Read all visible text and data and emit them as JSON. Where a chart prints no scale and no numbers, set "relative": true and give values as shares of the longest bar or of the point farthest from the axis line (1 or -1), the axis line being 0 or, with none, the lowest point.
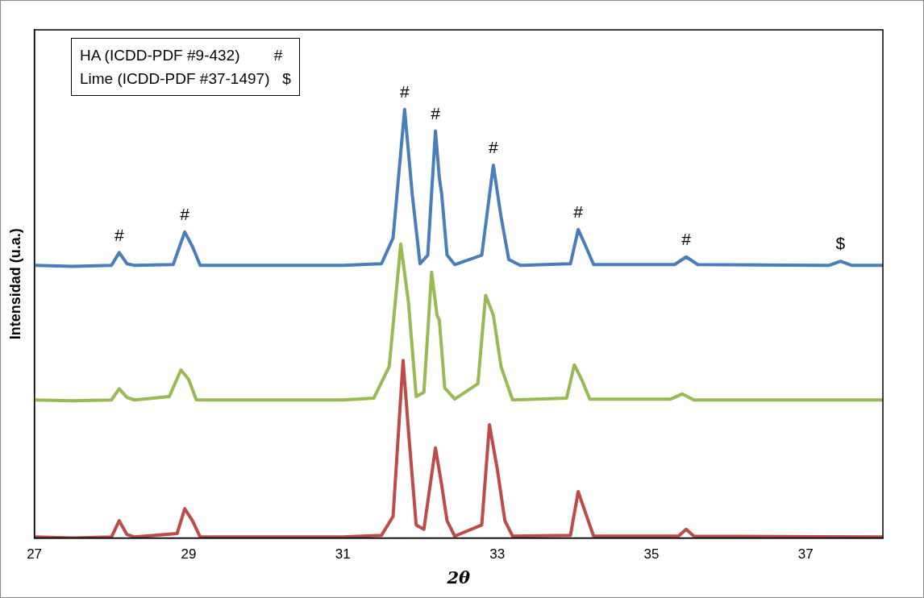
{
  "chart_data": {
    "type": "line",
    "relative": true,
    "xlabel": "2θ",
    "ylabel": "Intensidad (u.a.)",
    "xlim": [
      27,
      38
    ],
    "xticks": [
      27,
      29,
      31,
      33,
      35,
      37
    ],
    "grid": false,
    "legend": false,
    "marker": "none",
    "line_style": "solid",
    "annotations": [
      "HA (ICDD-PDF #9-432)        #",
      "Lime (ICDD-PDF #37-1497)   $",
      {
        "text": "#",
        "x": 28.1,
        "y": 0.666
      },
      {
        "text": "#",
        "x": 28.95,
        "y": 0.714
      },
      {
        "text": "#",
        "x": 31.8,
        "y": 1.0
      },
      {
        "text": "#",
        "x": 32.2,
        "y": 0.95
      },
      {
        "text": "#",
        "x": 32.95,
        "y": 0.87
      },
      {
        "text": "#",
        "x": 34.05,
        "y": 0.72
      },
      {
        "text": "#",
        "x": 35.45,
        "y": 0.656
      },
      {
        "text": "$",
        "x": 37.45,
        "y": 0.646
      }
    ],
    "series": [
      {
        "color": "#4a7ebb",
        "x": [
          27,
          27.5,
          28.0,
          28.1,
          28.2,
          28.3,
          28.8,
          28.95,
          29.05,
          29.15,
          30,
          31,
          31.5,
          31.65,
          31.8,
          31.9,
          32.0,
          32.1,
          32.2,
          32.25,
          32.28,
          32.35,
          32.45,
          32.8,
          32.95,
          33.05,
          33.15,
          33.3,
          33.95,
          34.05,
          34.15,
          34.25,
          35.3,
          35.45,
          35.6,
          37.3,
          37.45,
          37.6,
          38
        ],
        "values": [
          0.636,
          0.634,
          0.636,
          0.666,
          0.64,
          0.636,
          0.638,
          0.714,
          0.68,
          0.636,
          0.636,
          0.636,
          0.64,
          0.7,
          1.0,
          0.8,
          0.64,
          0.66,
          0.95,
          0.84,
          0.804,
          0.66,
          0.638,
          0.66,
          0.87,
          0.75,
          0.65,
          0.636,
          0.64,
          0.72,
          0.68,
          0.638,
          0.638,
          0.656,
          0.638,
          0.636,
          0.646,
          0.636,
          0.636
        ]
      },
      {
        "color": "#98b954",
        "x": [
          27,
          27.5,
          28.0,
          28.1,
          28.2,
          28.3,
          28.75,
          28.9,
          29.0,
          29.1,
          30,
          31,
          31.4,
          31.6,
          31.75,
          31.85,
          31.95,
          32.05,
          32.15,
          32.22,
          32.25,
          32.32,
          32.45,
          32.75,
          32.85,
          32.95,
          33.05,
          33.2,
          33.9,
          34.0,
          34.1,
          34.2,
          35.25,
          35.4,
          35.55,
          38
        ],
        "values": [
          0.322,
          0.32,
          0.322,
          0.348,
          0.328,
          0.322,
          0.33,
          0.392,
          0.37,
          0.322,
          0.322,
          0.322,
          0.326,
          0.4,
          0.686,
          0.55,
          0.33,
          0.34,
          0.62,
          0.52,
          0.508,
          0.35,
          0.324,
          0.36,
          0.566,
          0.52,
          0.4,
          0.322,
          0.326,
          0.404,
          0.368,
          0.324,
          0.324,
          0.336,
          0.322,
          0.322
        ]
      },
      {
        "color": "#be4b48",
        "x": [
          27,
          27.5,
          28.0,
          28.1,
          28.2,
          28.3,
          28.85,
          28.95,
          29.05,
          29.15,
          30,
          31,
          31.5,
          31.65,
          31.78,
          31.85,
          31.95,
          32.05,
          32.2,
          32.28,
          32.35,
          32.45,
          32.8,
          32.9,
          33.0,
          33.1,
          33.2,
          33.95,
          34.05,
          34.15,
          34.25,
          35.35,
          35.45,
          35.55,
          38
        ],
        "values": [
          0.002,
          0.0,
          0.002,
          0.04,
          0.008,
          0.002,
          0.01,
          0.068,
          0.04,
          0.002,
          0.002,
          0.002,
          0.006,
          0.05,
          0.414,
          0.25,
          0.03,
          0.02,
          0.21,
          0.124,
          0.04,
          0.004,
          0.03,
          0.264,
          0.162,
          0.04,
          0.004,
          0.006,
          0.108,
          0.056,
          0.004,
          0.004,
          0.02,
          0.004,
          0.002
        ]
      }
    ]
  }
}
